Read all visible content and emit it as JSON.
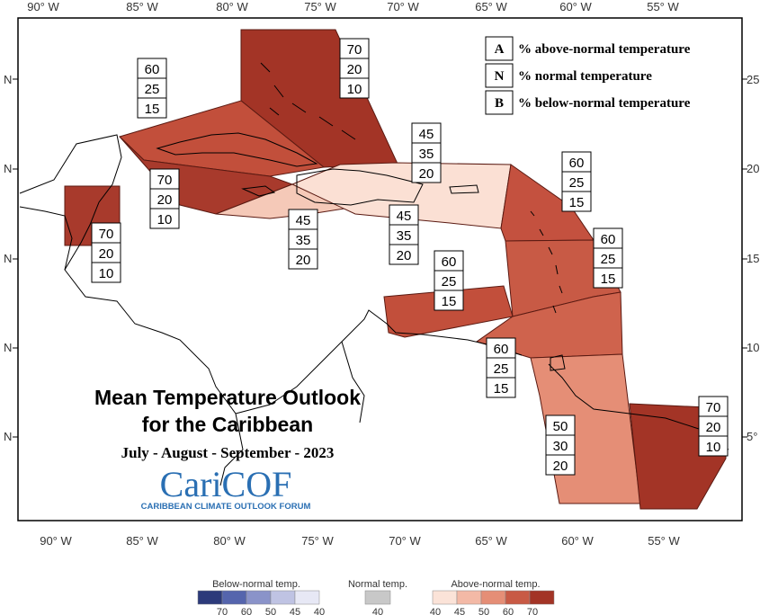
{
  "title": "Mean Temperature Outlook",
  "title_line2": "for the Caribbean",
  "period": "July - August - September - 2023",
  "logo": {
    "text": "CariCOF",
    "subtitle": "CARIBBEAN CLIMATE OUTLOOK FORUM"
  },
  "axes": {
    "longitude_top": [
      "90° W",
      "85° W",
      "80° W",
      "75° W",
      "70° W",
      "65° W",
      "60° W",
      "55° W"
    ],
    "longitude_bottom": [
      "90° W",
      "85° W",
      "80° W",
      "75° W",
      "70° W",
      "65° W",
      "60° W",
      "55° W"
    ],
    "latitude_left": [
      "N",
      "N",
      "N",
      "N",
      "N"
    ],
    "latitude_right": [
      "25",
      "20",
      "15",
      "10",
      "5°"
    ]
  },
  "key": [
    {
      "letter": "A",
      "text": "% above-normal temperature"
    },
    {
      "letter": "N",
      "text": "% normal temperature"
    },
    {
      "letter": "B",
      "text": "% below-normal temperature"
    }
  ],
  "regions": [
    {
      "id": "bahamas",
      "color": "#a33426",
      "A": "70",
      "N": "20",
      "B": "10"
    },
    {
      "id": "cuba",
      "color": "#c24f3b",
      "A": "60",
      "N": "25",
      "B": "15"
    },
    {
      "id": "cayman-jamaica",
      "color": "#a83a2c",
      "A": "70",
      "N": "20",
      "B": "10"
    },
    {
      "id": "belize",
      "color": "#a83a2c",
      "A": "70",
      "N": "20",
      "B": "10"
    },
    {
      "id": "hispaniola-south",
      "color": "#f5c9b8",
      "A": "45",
      "N": "35",
      "B": "20"
    },
    {
      "id": "hispaniola-pr",
      "color": "#fbe0d4",
      "A": "45",
      "N": "35",
      "B": "20"
    },
    {
      "id": "turks-caicos",
      "color": "#f5c9b8",
      "A": "45",
      "N": "35",
      "B": "20"
    },
    {
      "id": "northern-leewards",
      "color": "#c4513f",
      "A": "60",
      "N": "25",
      "B": "15"
    },
    {
      "id": "windwards",
      "color": "#c85a45",
      "A": "60",
      "N": "25",
      "B": "15"
    },
    {
      "id": "abc-islands",
      "color": "#c24f3b",
      "A": "60",
      "N": "25",
      "B": "15"
    },
    {
      "id": "trinidad",
      "color": "#cf634d",
      "A": "60",
      "N": "25",
      "B": "15"
    },
    {
      "id": "guyana",
      "color": "#e58e76",
      "A": "50",
      "N": "30",
      "B": "20"
    },
    {
      "id": "suriname-french-guiana",
      "color": "#a33426",
      "A": "70",
      "N": "20",
      "B": "10"
    }
  ],
  "legend": {
    "below_title": "Below-normal temp.",
    "normal_title": "Normal temp.",
    "above_title": "Above-normal temp.",
    "below_colors": [
      "#2c3a7a",
      "#5565ad",
      "#8a93c9",
      "#bfc3e3",
      "#e7e8f5"
    ],
    "below_ticks": [
      "70",
      "60",
      "50",
      "45",
      "40"
    ],
    "normal_color": "#c8c8c8",
    "normal_tick": "40",
    "above_colors": [
      "#fbe3d8",
      "#f3b9a6",
      "#e58e76",
      "#c85a45",
      "#a33426"
    ],
    "above_ticks": [
      "40",
      "45",
      "50",
      "60",
      "70"
    ]
  }
}
